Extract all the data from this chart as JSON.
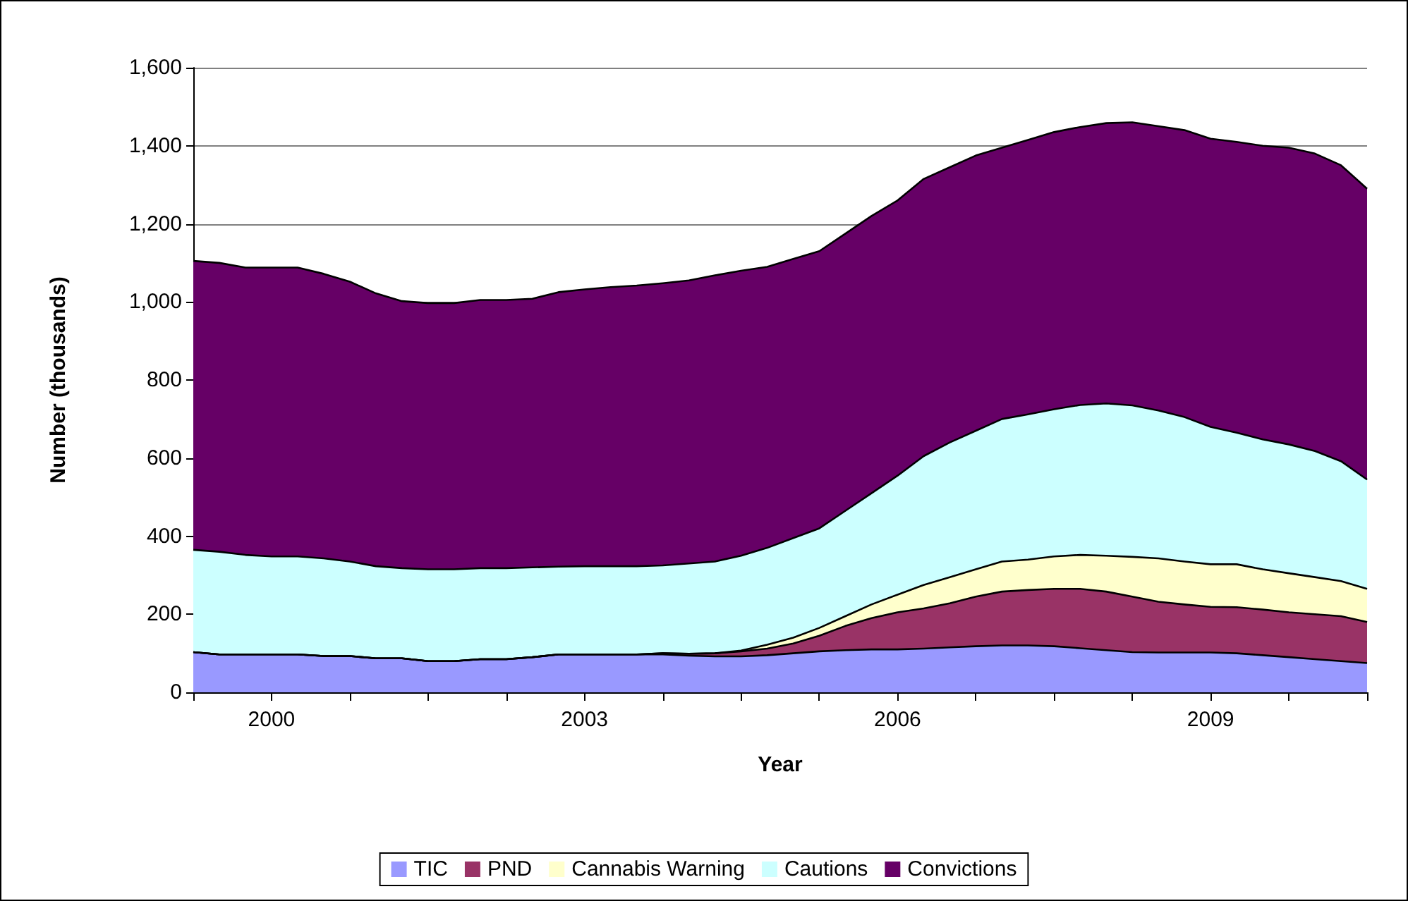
{
  "chart_data": {
    "type": "area",
    "stacked": true,
    "xlabel": "Year",
    "ylabel": "Number (thousands)",
    "categories": [
      null,
      null,
      null,
      "2000",
      null,
      null,
      null,
      null,
      null,
      null,
      null,
      null,
      null,
      null,
      null,
      "2003",
      null,
      null,
      null,
      null,
      null,
      null,
      null,
      null,
      null,
      null,
      null,
      "2006",
      null,
      null,
      null,
      null,
      null,
      null,
      null,
      null,
      null,
      null,
      null,
      "2009",
      null,
      null,
      null,
      null,
      null,
      null
    ],
    "series": [
      {
        "name": "TIC",
        "color": "#9999ff",
        "values": [
          103,
          97,
          97,
          97,
          97,
          93,
          93,
          87,
          87,
          80,
          80,
          85,
          85,
          90,
          97,
          97,
          97,
          97,
          97,
          94,
          92,
          92,
          95,
          100,
          105,
          108,
          110,
          110,
          112,
          115,
          118,
          120,
          120,
          118,
          113,
          108,
          103,
          102,
          102,
          102,
          100,
          95,
          90,
          85,
          80,
          75
        ]
      },
      {
        "name": "PND",
        "color": "#993366",
        "values": [
          0,
          0,
          0,
          0,
          0,
          0,
          0,
          0,
          0,
          0,
          0,
          0,
          0,
          0,
          0,
          0,
          0,
          0,
          3,
          5,
          8,
          13,
          17,
          25,
          40,
          62,
          80,
          95,
          103,
          113,
          127,
          138,
          142,
          147,
          152,
          150,
          142,
          130,
          123,
          117,
          118,
          117,
          115,
          115,
          115,
          105
        ]
      },
      {
        "name": "Cannabis Warning",
        "color": "#ffffcc",
        "values": [
          0,
          0,
          0,
          0,
          0,
          0,
          0,
          0,
          0,
          0,
          0,
          0,
          0,
          0,
          0,
          0,
          0,
          0,
          0,
          0,
          0,
          2,
          10,
          15,
          20,
          25,
          35,
          45,
          60,
          67,
          70,
          77,
          78,
          83,
          87,
          92,
          102,
          111,
          110,
          109,
          110,
          103,
          100,
          95,
          90,
          85
        ]
      },
      {
        "name": "Cautions",
        "color": "#ccffff",
        "values": [
          262,
          263,
          255,
          251,
          251,
          250,
          242,
          236,
          231,
          235,
          235,
          233,
          233,
          230,
          225,
          226,
          226,
          226,
          225,
          231,
          235,
          243,
          248,
          255,
          255,
          270,
          285,
          305,
          330,
          345,
          355,
          365,
          372,
          377,
          384,
          390,
          388,
          379,
          370,
          352,
          337,
          333,
          330,
          323,
          307,
          280
        ]
      },
      {
        "name": "Convictions",
        "color": "#660066",
        "values": [
          740,
          740,
          736,
          740,
          740,
          729,
          717,
          699,
          684,
          682,
          682,
          687,
          687,
          688,
          703,
          709,
          715,
          719,
          723,
          725,
          733,
          730,
          720,
          715,
          710,
          710,
          710,
          705,
          710,
          705,
          705,
          695,
          703,
          710,
          712,
          718,
          725,
          728,
          735,
          738,
          745,
          752,
          760,
          762,
          758,
          745
        ]
      }
    ],
    "ylim": [
      0,
      1600
    ],
    "yticks": [
      0,
      200,
      400,
      600,
      800,
      {
        "value": 1000,
        "label": "1,000"
      },
      {
        "value": 1200,
        "label": "1,200"
      },
      {
        "value": 1400,
        "label": "1,400"
      },
      {
        "value": 1600,
        "label": "1,600"
      }
    ],
    "grid": "y",
    "legend": "bottom",
    "marker": "none"
  }
}
